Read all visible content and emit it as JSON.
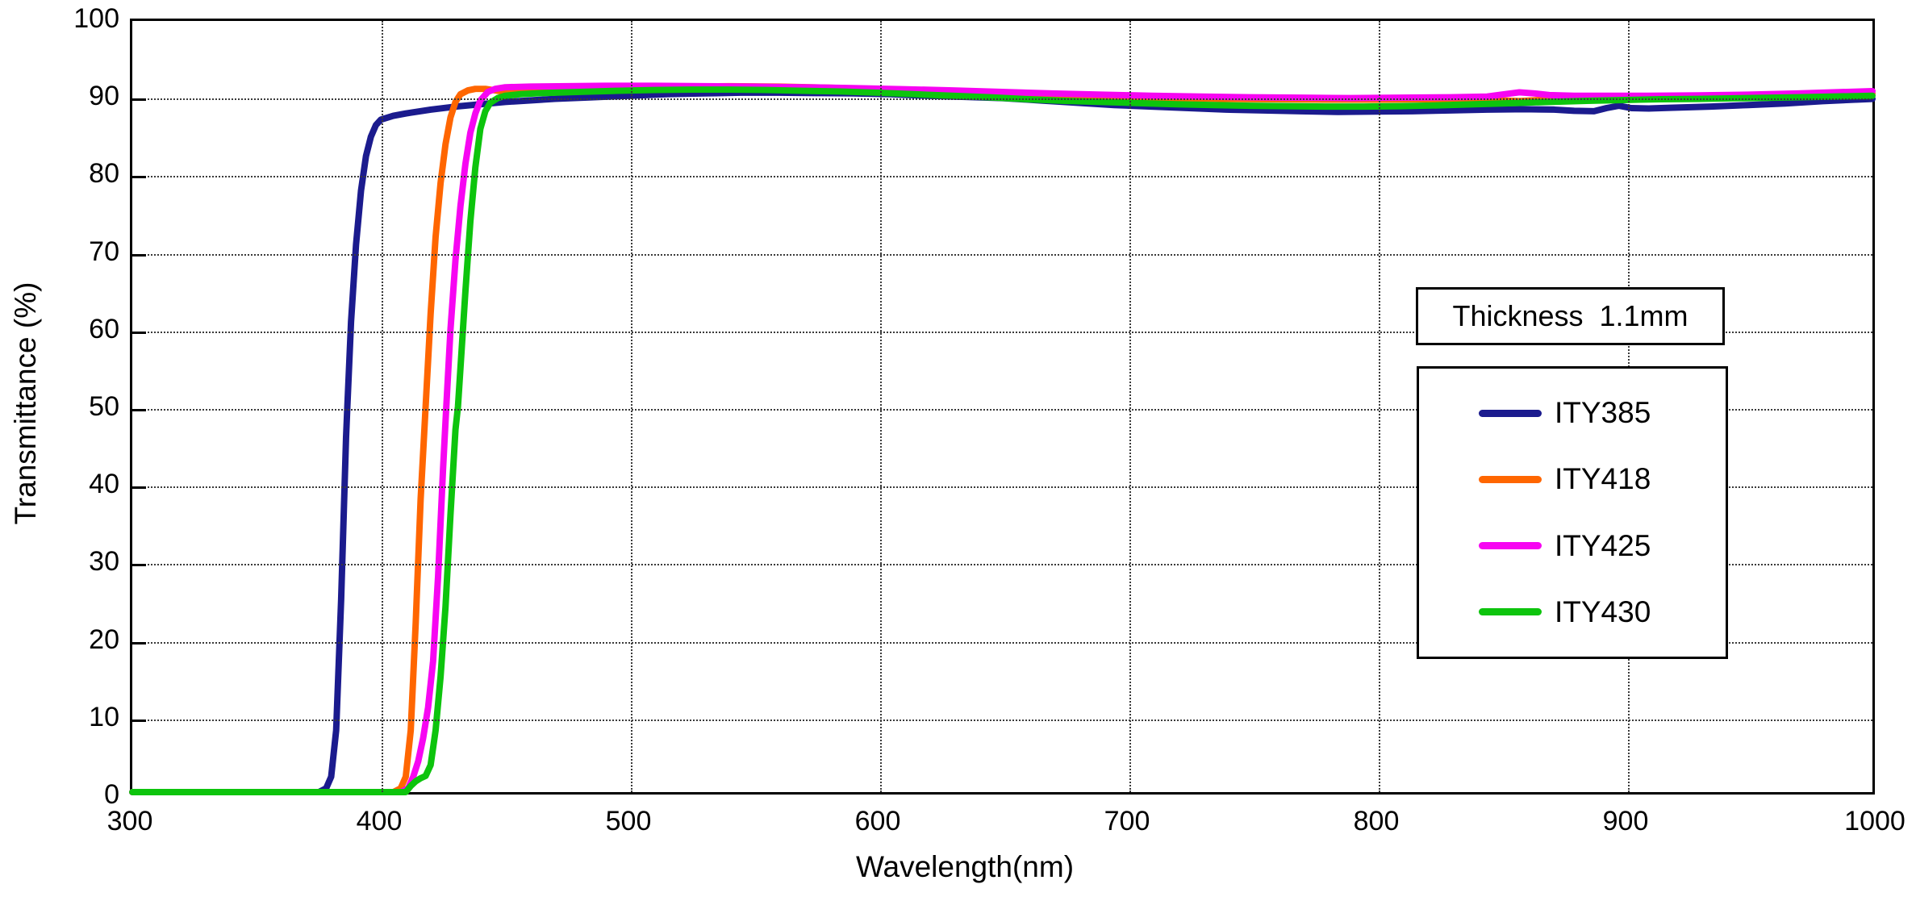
{
  "thickness_box": {
    "label": "Thickness  1.1mm"
  },
  "legend": {
    "items": [
      {
        "label": "ITY385",
        "color": "#1b1b8e"
      },
      {
        "label": "ITY418",
        "color": "#ff6600"
      },
      {
        "label": "ITY425",
        "color": "#f705f2"
      },
      {
        "label": "ITY430",
        "color": "#0dc40d"
      }
    ]
  },
  "chart_data": {
    "type": "line",
    "title": "",
    "xlabel": "Wavelength(nm)",
    "ylabel": "Transmittance (%)",
    "xlim": [
      300,
      1000
    ],
    "ylim": [
      0,
      100
    ],
    "x_ticks": [
      300,
      400,
      500,
      600,
      700,
      800,
      900,
      1000
    ],
    "y_ticks": [
      0,
      10,
      20,
      30,
      40,
      50,
      60,
      70,
      80,
      90,
      100
    ],
    "grid": "dotted both axes",
    "legend_position": "right-center boxed",
    "annotation": "Thickness  1.1mm",
    "series": [
      {
        "name": "ITY385",
        "color": "#1b1b8e",
        "points": [
          [
            300,
            0
          ],
          [
            375,
            0
          ],
          [
            378,
            0.5
          ],
          [
            380,
            2
          ],
          [
            382,
            8
          ],
          [
            384,
            25
          ],
          [
            386,
            46
          ],
          [
            386.5,
            50
          ],
          [
            388,
            61
          ],
          [
            390,
            71
          ],
          [
            392,
            78
          ],
          [
            394,
            82.5
          ],
          [
            396,
            85
          ],
          [
            398,
            86.5
          ],
          [
            400,
            87.2
          ],
          [
            405,
            87.7
          ],
          [
            410,
            88
          ],
          [
            420,
            88.5
          ],
          [
            430,
            88.9
          ],
          [
            440,
            89.2
          ],
          [
            450,
            89.5
          ],
          [
            460,
            89.7
          ],
          [
            470,
            89.9
          ],
          [
            485,
            90.1
          ],
          [
            500,
            90.3
          ],
          [
            515,
            90.5
          ],
          [
            530,
            90.6
          ],
          [
            545,
            90.7
          ],
          [
            560,
            90.7
          ],
          [
            575,
            90.65
          ],
          [
            590,
            90.6
          ],
          [
            605,
            90.5
          ],
          [
            620,
            90.3
          ],
          [
            635,
            90.15
          ],
          [
            650,
            90
          ],
          [
            665,
            89.7
          ],
          [
            680,
            89.4
          ],
          [
            695,
            89.1
          ],
          [
            710,
            88.9
          ],
          [
            725,
            88.7
          ],
          [
            740,
            88.5
          ],
          [
            755,
            88.4
          ],
          [
            770,
            88.3
          ],
          [
            785,
            88.2
          ],
          [
            800,
            88.25
          ],
          [
            815,
            88.3
          ],
          [
            830,
            88.4
          ],
          [
            845,
            88.5
          ],
          [
            860,
            88.55
          ],
          [
            872,
            88.5
          ],
          [
            880,
            88.35
          ],
          [
            888,
            88.3
          ],
          [
            893,
            88.7
          ],
          [
            898,
            89
          ],
          [
            903,
            88.7
          ],
          [
            910,
            88.65
          ],
          [
            920,
            88.75
          ],
          [
            935,
            88.9
          ],
          [
            950,
            89.1
          ],
          [
            965,
            89.3
          ],
          [
            980,
            89.6
          ],
          [
            1000,
            89.9
          ]
        ]
      },
      {
        "name": "ITY418",
        "color": "#ff6600",
        "points": [
          [
            300,
            0
          ],
          [
            405,
            0
          ],
          [
            408,
            0.5
          ],
          [
            410,
            2
          ],
          [
            412,
            8
          ],
          [
            414,
            22
          ],
          [
            416,
            38
          ],
          [
            418,
            50
          ],
          [
            420,
            62
          ],
          [
            422,
            72
          ],
          [
            424,
            79
          ],
          [
            426,
            84
          ],
          [
            428,
            87.5
          ],
          [
            430,
            89.5
          ],
          [
            432,
            90.5
          ],
          [
            435,
            91
          ],
          [
            438,
            91.2
          ],
          [
            442,
            91.2
          ],
          [
            446,
            91
          ],
          [
            450,
            90.8
          ],
          [
            455,
            90.7
          ],
          [
            460,
            90.75
          ],
          [
            470,
            90.9
          ],
          [
            485,
            91.1
          ],
          [
            500,
            91.3
          ],
          [
            520,
            91.45
          ],
          [
            540,
            91.55
          ],
          [
            560,
            91.5
          ],
          [
            580,
            91.35
          ],
          [
            600,
            91.15
          ],
          [
            620,
            90.95
          ],
          [
            640,
            90.7
          ],
          [
            660,
            90.5
          ],
          [
            680,
            90.3
          ],
          [
            700,
            90.15
          ],
          [
            720,
            90
          ],
          [
            740,
            89.9
          ],
          [
            760,
            89.85
          ],
          [
            780,
            89.8
          ],
          [
            800,
            89.8
          ],
          [
            820,
            89.85
          ],
          [
            840,
            89.85
          ],
          [
            850,
            89.7
          ],
          [
            858,
            89.6
          ],
          [
            866,
            89.75
          ],
          [
            880,
            89.85
          ],
          [
            900,
            89.9
          ],
          [
            920,
            90
          ],
          [
            940,
            90.1
          ],
          [
            960,
            90.25
          ],
          [
            980,
            90.4
          ],
          [
            1000,
            90.6
          ]
        ]
      },
      {
        "name": "ITY425",
        "color": "#f705f2",
        "points": [
          [
            300,
            0
          ],
          [
            408,
            0
          ],
          [
            411,
            0.5
          ],
          [
            413,
            2
          ],
          [
            415,
            4
          ],
          [
            417,
            7
          ],
          [
            419,
            11
          ],
          [
            421,
            17
          ],
          [
            423,
            28
          ],
          [
            425,
            42
          ],
          [
            426.3,
            50
          ],
          [
            428,
            60
          ],
          [
            430,
            69
          ],
          [
            432,
            76
          ],
          [
            434,
            81.5
          ],
          [
            436,
            85.5
          ],
          [
            438,
            88
          ],
          [
            440,
            89.7
          ],
          [
            443,
            90.8
          ],
          [
            446,
            91.2
          ],
          [
            450,
            91.4
          ],
          [
            460,
            91.5
          ],
          [
            475,
            91.55
          ],
          [
            490,
            91.6
          ],
          [
            510,
            91.6
          ],
          [
            530,
            91.55
          ],
          [
            550,
            91.5
          ],
          [
            570,
            91.4
          ],
          [
            590,
            91.3
          ],
          [
            610,
            91.15
          ],
          [
            630,
            91
          ],
          [
            650,
            90.8
          ],
          [
            670,
            90.6
          ],
          [
            690,
            90.45
          ],
          [
            710,
            90.3
          ],
          [
            730,
            90.2
          ],
          [
            750,
            90.1
          ],
          [
            770,
            90.05
          ],
          [
            790,
            90
          ],
          [
            810,
            90.05
          ],
          [
            830,
            90.1
          ],
          [
            845,
            90.2
          ],
          [
            852,
            90.5
          ],
          [
            858,
            90.75
          ],
          [
            864,
            90.6
          ],
          [
            870,
            90.4
          ],
          [
            880,
            90.3
          ],
          [
            895,
            90.3
          ],
          [
            910,
            90.3
          ],
          [
            930,
            90.35
          ],
          [
            950,
            90.45
          ],
          [
            970,
            90.6
          ],
          [
            1000,
            90.9
          ]
        ]
      },
      {
        "name": "ITY430",
        "color": "#0dc40d",
        "points": [
          [
            300,
            0
          ],
          [
            410,
            0
          ],
          [
            412,
            0.8
          ],
          [
            414,
            1.4
          ],
          [
            416,
            1.8
          ],
          [
            418,
            2.1
          ],
          [
            420,
            3.5
          ],
          [
            422,
            8
          ],
          [
            424,
            15
          ],
          [
            426,
            24
          ],
          [
            428,
            36
          ],
          [
            430,
            47
          ],
          [
            431,
            50
          ],
          [
            432,
            55
          ],
          [
            434,
            65
          ],
          [
            436,
            74
          ],
          [
            438,
            81
          ],
          [
            440,
            86
          ],
          [
            442,
            88.3
          ],
          [
            444,
            89.4
          ],
          [
            447,
            90
          ],
          [
            450,
            90.3
          ],
          [
            456,
            90.5
          ],
          [
            465,
            90.65
          ],
          [
            480,
            90.8
          ],
          [
            495,
            90.95
          ],
          [
            510,
            91.05
          ],
          [
            525,
            91.1
          ],
          [
            540,
            91.1
          ],
          [
            555,
            91.05
          ],
          [
            570,
            90.95
          ],
          [
            585,
            90.85
          ],
          [
            600,
            90.7
          ],
          [
            615,
            90.5
          ],
          [
            630,
            90.3
          ],
          [
            645,
            90.1
          ],
          [
            660,
            89.85
          ],
          [
            675,
            89.65
          ],
          [
            690,
            89.5
          ],
          [
            705,
            89.35
          ],
          [
            720,
            89.2
          ],
          [
            735,
            89.1
          ],
          [
            750,
            89
          ],
          [
            765,
            88.95
          ],
          [
            780,
            88.9
          ],
          [
            795,
            88.9
          ],
          [
            810,
            88.95
          ],
          [
            825,
            89.05
          ],
          [
            840,
            89.2
          ],
          [
            855,
            89.35
          ],
          [
            870,
            89.5
          ],
          [
            885,
            89.65
          ],
          [
            900,
            89.75
          ],
          [
            915,
            89.85
          ],
          [
            930,
            89.9
          ],
          [
            950,
            90
          ],
          [
            970,
            90.1
          ],
          [
            1000,
            90.3
          ]
        ]
      }
    ]
  }
}
